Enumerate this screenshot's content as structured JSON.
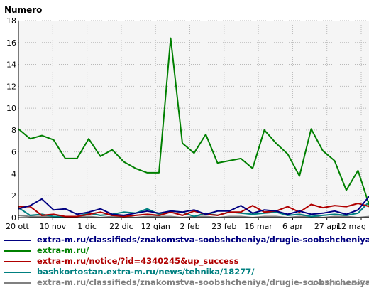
{
  "chart_data": {
    "type": "line",
    "ylabel": "Numero",
    "ylim": [
      0,
      18
    ],
    "yticks": [
      0,
      2,
      4,
      6,
      8,
      10,
      12,
      14,
      16,
      18
    ],
    "xticks": [
      "20 ott",
      "10 nov",
      "1 dic",
      "22 dic",
      "12 gian",
      "2 feb",
      "23 feb",
      "16 mar",
      "6 apr",
      "27 apr",
      "12 mag"
    ],
    "grid": true,
    "legend_position": "bottom",
    "series": [
      {
        "name": "extra-m.ru/classifieds/znakomstva-soobshcheniya/drugie-soobshcheniya/l",
        "color": "#000080",
        "values": [
          0.8,
          1.1,
          1.7,
          0.7,
          0.8,
          0.3,
          0.5,
          0.8,
          0.3,
          0.2,
          0.4,
          0.6,
          0.4,
          0.6,
          0.5,
          0.7,
          0.3,
          0.6,
          0.6,
          1.1,
          0.4,
          0.7,
          0.6,
          0.3,
          0.6,
          0.3,
          0.4,
          0.6,
          0.3,
          0.7,
          2.0
        ]
      },
      {
        "name": "extra-m.ru/",
        "color": "#008000",
        "values": [
          8.1,
          7.2,
          7.5,
          7.1,
          5.4,
          5.4,
          7.2,
          5.6,
          6.2,
          5.1,
          4.5,
          4.1,
          4.1,
          16.4,
          6.8,
          5.9,
          7.6,
          5.0,
          5.2,
          5.4,
          4.5,
          8.0,
          6.8,
          5.8,
          3.8,
          8.1,
          6.1,
          5.2,
          2.5,
          4.3,
          1.0
        ]
      },
      {
        "name": "extra-m.ru/notice/?id=4340245&up_success",
        "color": "#b00000",
        "values": [
          1.0,
          1.0,
          0.2,
          0.3,
          0.1,
          0.1,
          0.3,
          0.5,
          0.2,
          0.1,
          0.2,
          0.3,
          0.2,
          0.5,
          0.2,
          0.6,
          0.3,
          0.2,
          0.5,
          0.5,
          1.1,
          0.5,
          0.6,
          1.0,
          0.5,
          1.2,
          0.9,
          1.1,
          1.0,
          1.3,
          1.0
        ]
      },
      {
        "name": "bashkortostan.extra-m.ru/news/tehnika/18277/",
        "color": "#008080",
        "values": [
          0.9,
          0.2,
          0.3,
          0.1,
          0.1,
          0.1,
          0.4,
          0.2,
          0.3,
          0.5,
          0.4,
          0.8,
          0.3,
          0.6,
          0.5,
          0.1,
          0.4,
          0.2,
          0.5,
          0.4,
          0.3,
          0.4,
          0.5,
          0.2,
          0.3,
          0.1,
          0.2,
          0.3,
          0.2,
          0.4,
          1.5
        ]
      },
      {
        "name": "extra-m.ru/classifieds/znakomstva-soobshcheniya/drugie-soobshcheniya/l",
        "color": "#808080",
        "values": [
          0.2,
          0.1,
          0.1,
          0.1,
          0.0,
          0.1,
          0.1,
          0.0,
          0.1,
          0.1,
          0.0,
          0.1,
          0.1,
          0.1,
          0.0,
          0.1,
          0.1,
          0.0,
          0.1,
          0.1,
          0.0,
          0.1,
          0.1,
          0.0,
          0.1,
          0.1,
          0.0,
          0.1,
          0.1,
          0.0,
          0.1
        ]
      }
    ]
  },
  "footer_text": "Livelli/ItalianSoft"
}
